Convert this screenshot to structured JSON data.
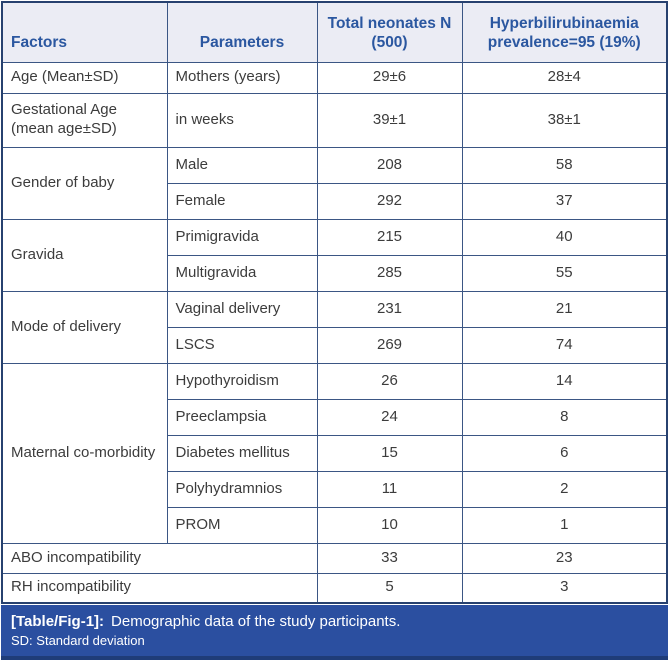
{
  "header": {
    "factors": "Factors",
    "parameters": "Parameters",
    "total": "Total neonates N (500)",
    "prevalence": "Hyperbilirubinaemia prevalence=95 (19%)"
  },
  "rows": [
    {
      "factor": "Age (Mean±SD)",
      "parameter": "Mothers (years)",
      "total": "29±6",
      "prevalence": "28±4"
    },
    {
      "factor": "Gestational Age (mean age±SD)",
      "parameter": "in weeks",
      "total": "39±1",
      "prevalence": "38±1"
    },
    {
      "factor": "Gender of baby",
      "parameter": "Male",
      "total": "208",
      "prevalence": "58"
    },
    {
      "parameter": "Female",
      "total": "292",
      "prevalence": "37"
    },
    {
      "factor": "Gravida",
      "parameter": "Primigravida",
      "total": "215",
      "prevalence": "40"
    },
    {
      "parameter": "Multigravida",
      "total": "285",
      "prevalence": "55"
    },
    {
      "factor": "Mode of delivery",
      "parameter": "Vaginal delivery",
      "total": "231",
      "prevalence": "21"
    },
    {
      "parameter": "LSCS",
      "total": "269",
      "prevalence": "74"
    },
    {
      "factor": "Maternal co-morbidity",
      "parameter": "Hypothyroidism",
      "total": "26",
      "prevalence": "14"
    },
    {
      "parameter": "Preeclampsia",
      "total": "24",
      "prevalence": "8"
    },
    {
      "parameter": "Diabetes mellitus",
      "total": "15",
      "prevalence": "6"
    },
    {
      "parameter": "Polyhydramnios",
      "total": "11",
      "prevalence": "2"
    },
    {
      "parameter": "PROM",
      "total": "10",
      "prevalence": "1"
    },
    {
      "factor": "ABO incompatibility",
      "total": "33",
      "prevalence": "23"
    },
    {
      "factor": "RH incompatibility",
      "total": "5",
      "prevalence": "3"
    }
  ],
  "caption": {
    "tag": "[Table/Fig-1]:",
    "text": "Demographic data of the study participants.",
    "note": "SD: Standard deviation"
  },
  "colors": {
    "grid_border": "#3b5684",
    "outer_border": "#27416f",
    "header_bg": "#ebecf4",
    "header_text": "#2b57a0",
    "body_text": "#3c3c3c",
    "caption_bg": "#2b4fa0",
    "caption_text": "#ffffff"
  }
}
